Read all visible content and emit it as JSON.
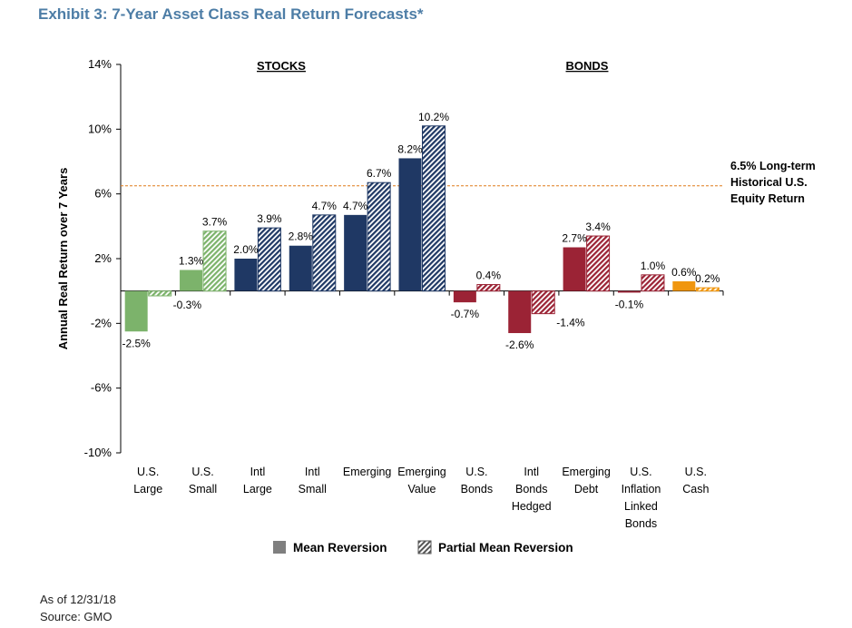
{
  "title": "Exhibit 3: 7-Year Asset Class Real Return Forecasts*",
  "footer": {
    "as_of": "As of 12/31/18",
    "source": "Source: GMO"
  },
  "chart_data": {
    "type": "bar",
    "ylabel": "Annual Real Return over 7 Years",
    "ylim": [
      -10,
      14
    ],
    "yticks": [
      -10,
      -6,
      -2,
      2,
      6,
      10,
      14
    ],
    "ytick_labels": [
      "-10%",
      "-6%",
      "-2%",
      "2%",
      "6%",
      "10%",
      "14%"
    ],
    "sections": [
      {
        "label": "STOCKS",
        "over": "U.S. Large – Emerging Value"
      },
      {
        "label": "BONDS",
        "over": "U.S. Bonds – U.S. Cash"
      }
    ],
    "reference_line": {
      "value": 6.5,
      "color": "#e07b1a",
      "label_lines": [
        "6.5% Long-term",
        "Historical U.S.",
        "Equity Return"
      ]
    },
    "categories": [
      {
        "label_lines": [
          "U.S.",
          "Large"
        ],
        "color": "#7cb36b",
        "mean": -2.5,
        "partial": -0.3,
        "mean_label": "-2.5%",
        "partial_label": "-0.3%"
      },
      {
        "label_lines": [
          "U.S.",
          "Small"
        ],
        "color": "#7cb36b",
        "mean": 1.3,
        "partial": 3.7,
        "mean_label": "1.3%",
        "partial_label": "3.7%"
      },
      {
        "label_lines": [
          "Intl",
          "Large"
        ],
        "color": "#1f3864",
        "mean": 2.0,
        "partial": 3.9,
        "mean_label": "2.0%",
        "partial_label": "3.9%"
      },
      {
        "label_lines": [
          "Intl",
          "Small"
        ],
        "color": "#1f3864",
        "mean": 2.8,
        "partial": 4.7,
        "mean_label": "2.8%",
        "partial_label": "4.7%"
      },
      {
        "label_lines": [
          "Emerging"
        ],
        "color": "#1f3864",
        "mean": 4.7,
        "partial": 6.7,
        "mean_label": "4.7%",
        "partial_label": "6.7%"
      },
      {
        "label_lines": [
          "Emerging",
          "Value"
        ],
        "color": "#1f3864",
        "mean": 8.2,
        "partial": 10.2,
        "mean_label": "8.2%",
        "partial_label": "10.2%"
      },
      {
        "label_lines": [
          "U.S.",
          "Bonds"
        ],
        "color": "#9b2335",
        "mean": -0.7,
        "partial": 0.4,
        "mean_label": "-0.7%",
        "partial_label": "0.4%"
      },
      {
        "label_lines": [
          "Intl",
          "Bonds",
          "Hedged"
        ],
        "color": "#9b2335",
        "mean": -2.6,
        "partial": -1.4,
        "mean_label": "-2.6%",
        "partial_label": "-1.4%"
      },
      {
        "label_lines": [
          "Emerging",
          "Debt"
        ],
        "color": "#9b2335",
        "mean": 2.7,
        "partial": 3.4,
        "mean_label": "2.7%",
        "partial_label": "3.4%"
      },
      {
        "label_lines": [
          "U.S.",
          "Inflation",
          "Linked",
          "Bonds"
        ],
        "color": "#9b2335",
        "mean": -0.1,
        "partial": 1.0,
        "mean_label": "-0.1%",
        "partial_label": "1.0%"
      },
      {
        "label_lines": [
          "U.S.",
          "Cash"
        ],
        "color": "#f0960e",
        "mean": 0.6,
        "partial": 0.2,
        "mean_label": "0.6%",
        "partial_label": "0.2%"
      }
    ],
    "legend": {
      "mean": "Mean Reversion",
      "partial": "Partial Mean Reversion",
      "placement": "bottom-center"
    },
    "grid": false
  }
}
